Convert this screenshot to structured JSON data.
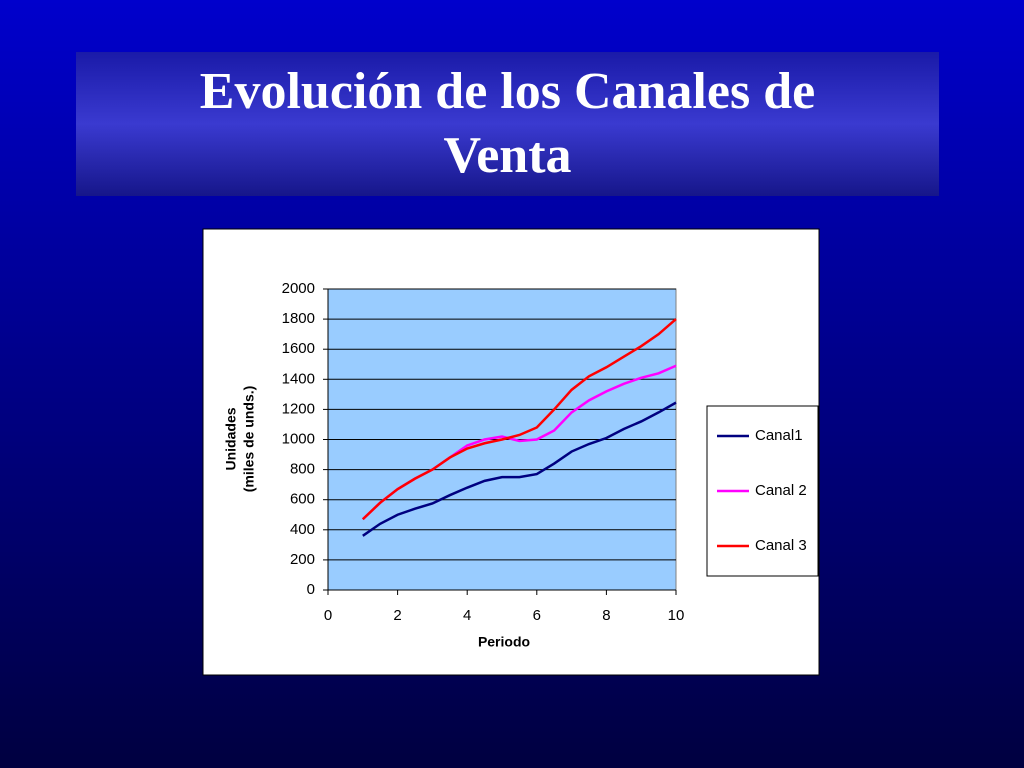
{
  "chart_data": {
    "type": "line",
    "title": "Evolución de los Canales de Venta",
    "x_label": "Periodo",
    "y_label": [
      "Unidades",
      "(miles de unds.)"
    ],
    "x": [
      1,
      1.5,
      2,
      2.5,
      3,
      3.5,
      4,
      4.5,
      5,
      5.5,
      6,
      6.5,
      7,
      7.5,
      8,
      8.5,
      9,
      9.5,
      10
    ],
    "series": [
      {
        "name": "Canal1",
        "color": "#000080",
        "values": [
          360,
          440,
          500,
          540,
          575,
          630,
          680,
          725,
          750,
          750,
          770,
          840,
          920,
          970,
          1010,
          1070,
          1120,
          1180,
          1245
        ]
      },
      {
        "name": "Canal 2",
        "color": "#ff00ff",
        "values": [
          470,
          580,
          670,
          740,
          800,
          880,
          960,
          1000,
          1020,
          990,
          1000,
          1060,
          1180,
          1260,
          1320,
          1370,
          1410,
          1440,
          1490
        ]
      },
      {
        "name": "Canal 3",
        "color": "#ff0000",
        "values": [
          470,
          580,
          670,
          740,
          800,
          880,
          940,
          975,
          1000,
          1030,
          1080,
          1200,
          1330,
          1420,
          1480,
          1550,
          1620,
          1700,
          1800
        ]
      }
    ],
    "xlim": [
      0,
      10
    ],
    "xticks": [
      0,
      2,
      4,
      6,
      8,
      10
    ],
    "ylim": [
      0,
      2000
    ],
    "yticks": [
      0,
      200,
      400,
      600,
      800,
      1000,
      1200,
      1400,
      1600,
      1800,
      2000
    ],
    "grid": true,
    "legend": "right"
  }
}
